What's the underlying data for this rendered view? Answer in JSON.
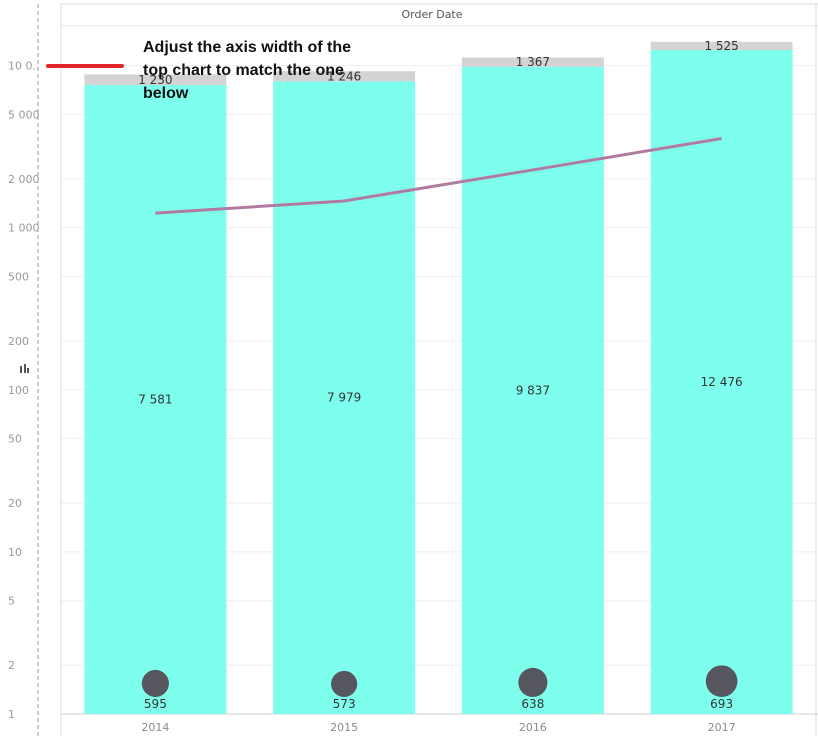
{
  "header": {
    "column_title": "Order Date"
  },
  "annotation": {
    "text": "Adjust the axis width of the top chart to match the one below"
  },
  "colors": {
    "bar_bottom": "#7effee",
    "bar_top": "#d3d3d3",
    "line": "#b07aa1",
    "circle": "#56565e",
    "annotation_marker": "#e3242b"
  },
  "chart_data": {
    "type": "bar",
    "stacked": true,
    "y_scale": "log",
    "ylim": [
      1,
      15000
    ],
    "y_ticks": [
      1,
      2,
      5,
      10,
      20,
      50,
      100,
      200,
      500,
      1000,
      2000,
      5000,
      10000
    ],
    "y_tick_labels": [
      "1",
      "2",
      "5",
      "10",
      "20",
      "50",
      "100",
      "200",
      "500",
      "1 000",
      "2 000",
      "5 000",
      "10 0.."
    ],
    "categories": [
      "2014",
      "2015",
      "2016",
      "2017"
    ],
    "series": [
      {
        "values": [
          7581,
          7979,
          9837,
          12476
        ],
        "labels": [
          "7 581",
          "7 979",
          "9 837",
          "12 476"
        ]
      },
      {
        "values": [
          1230,
          1246,
          1367,
          1525
        ],
        "labels": [
          "1 230",
          "1 246",
          "1 367",
          "1 525"
        ]
      }
    ],
    "line": {
      "values": [
        1230,
        1460,
        2270,
        3550
      ]
    },
    "circles": {
      "values": [
        595,
        573,
        638,
        693
      ],
      "labels": [
        "595",
        "573",
        "638",
        "693"
      ]
    },
    "grid": true
  }
}
